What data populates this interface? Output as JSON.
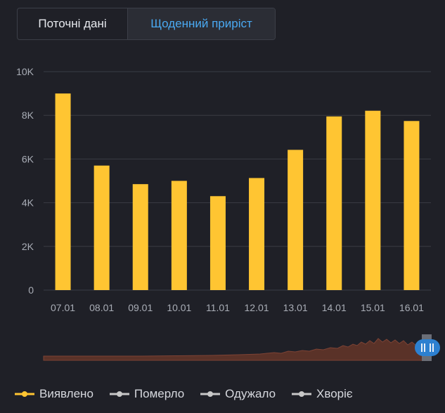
{
  "tabs": [
    {
      "label": "Поточні дані",
      "active": false
    },
    {
      "label": "Щоденний приріст",
      "active": true
    }
  ],
  "colors": {
    "bar": "#ffc532",
    "active_tab_text": "#4aa9f2",
    "background": "#1f2027",
    "grid": "#3a3c44",
    "navigator_fill": "#5a3228",
    "navigator_line": "#7d4335",
    "handle": "#2d80d0"
  },
  "chart_data": {
    "type": "bar",
    "categories": [
      "07.01",
      "08.01",
      "09.01",
      "10.01",
      "11.01",
      "12.01",
      "13.01",
      "14.01",
      "15.01",
      "16.01"
    ],
    "series": [
      {
        "name": "Виявлено",
        "values": [
          9000,
          5700,
          4850,
          5000,
          4300,
          5130,
          6420,
          7950,
          8210,
          7740
        ]
      }
    ],
    "ylim": [
      0,
      10000
    ],
    "yticks": [
      0,
      2000,
      4000,
      6000,
      8000,
      10000
    ],
    "ytick_labels": [
      "0",
      "2K",
      "4K",
      "6K",
      "8K",
      "10K"
    ],
    "grid": true,
    "legend": "bottom-left"
  },
  "legend": [
    {
      "label": "Виявлено",
      "active": true,
      "color": "#ffc532"
    },
    {
      "label": "Померло",
      "active": false,
      "color": "#c8c8c8"
    },
    {
      "label": "Одужало",
      "active": false,
      "color": "#c8c8c8"
    },
    {
      "label": "Хворіє",
      "active": false,
      "color": "#c8c8c8"
    }
  ]
}
